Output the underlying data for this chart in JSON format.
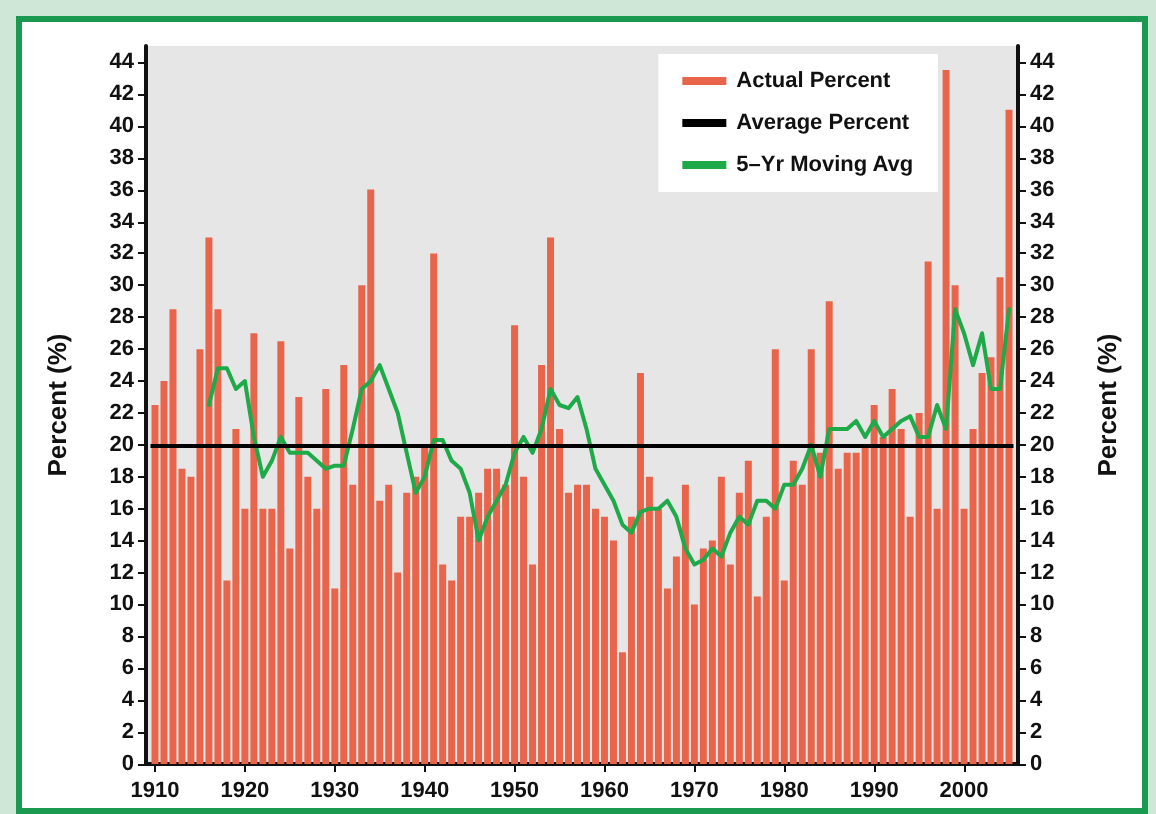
{
  "chart_data": {
    "type": "bar",
    "ylabel": "Percent (%)",
    "y2label": "Percent (%)",
    "x": [
      1910,
      1911,
      1912,
      1913,
      1914,
      1915,
      1916,
      1917,
      1918,
      1919,
      1920,
      1921,
      1922,
      1923,
      1924,
      1925,
      1926,
      1927,
      1928,
      1929,
      1930,
      1931,
      1932,
      1933,
      1934,
      1935,
      1936,
      1937,
      1938,
      1939,
      1940,
      1941,
      1942,
      1943,
      1944,
      1945,
      1946,
      1947,
      1948,
      1949,
      1950,
      1951,
      1952,
      1953,
      1954,
      1955,
      1956,
      1957,
      1958,
      1959,
      1960,
      1961,
      1962,
      1963,
      1964,
      1965,
      1966,
      1967,
      1968,
      1969,
      1970,
      1971,
      1972,
      1973,
      1974,
      1975,
      1976,
      1977,
      1978,
      1979,
      1980,
      1981,
      1982,
      1983,
      1984,
      1985,
      1986,
      1987,
      1988,
      1989,
      1990,
      1991,
      1992,
      1993,
      1994,
      1995,
      1996,
      1997,
      1998,
      1999,
      2000,
      2001,
      2002,
      2003,
      2004,
      2005
    ],
    "series": [
      {
        "name": "Actual Percent",
        "color": "#e8644a",
        "values": [
          22.5,
          24,
          28.5,
          18.5,
          18,
          26,
          33,
          28.5,
          11.5,
          21,
          16,
          27,
          16,
          16,
          26.5,
          13.5,
          23,
          18,
          16,
          23.5,
          11,
          25,
          17.5,
          30,
          36,
          16.5,
          17.5,
          12,
          17,
          18,
          20,
          32,
          12.5,
          11.5,
          15.5,
          15.5,
          17,
          18.5,
          18.5,
          17.5,
          27.5,
          18,
          12.5,
          25,
          33,
          21,
          17,
          17.5,
          17.5,
          16,
          15.5,
          14,
          7,
          15.5,
          24.5,
          18,
          16,
          11,
          13,
          17.5,
          10,
          13.5,
          14,
          18,
          12.5,
          17,
          19,
          10.5,
          15.5,
          26,
          11.5,
          19,
          17.5,
          26,
          19.5,
          29,
          18.5,
          19.5,
          19.5,
          20,
          22.5,
          20.5,
          23.5,
          21,
          15.5,
          22,
          31.5,
          16,
          43.5,
          30,
          16,
          21,
          24.5,
          25.5,
          30.5,
          41
        ]
      },
      {
        "name": "5–Yr Moving Avg",
        "type": "line",
        "color": "#1faa4a",
        "x": [
          1916,
          1917,
          1918,
          1919,
          1920,
          1921,
          1922,
          1923,
          1924,
          1925,
          1926,
          1927,
          1928,
          1929,
          1930,
          1931,
          1932,
          1933,
          1934,
          1935,
          1936,
          1937,
          1938,
          1939,
          1940,
          1941,
          1942,
          1943,
          1944,
          1945,
          1946,
          1947,
          1948,
          1949,
          1950,
          1951,
          1952,
          1953,
          1954,
          1955,
          1956,
          1957,
          1958,
          1959,
          1960,
          1961,
          1962,
          1963,
          1964,
          1965,
          1966,
          1967,
          1968,
          1969,
          1970,
          1971,
          1972,
          1973,
          1974,
          1975,
          1976,
          1977,
          1978,
          1979,
          1980,
          1981,
          1982,
          1983,
          1984,
          1985,
          1986,
          1987,
          1988,
          1989,
          1990,
          1991,
          1992,
          1993,
          1994,
          1995,
          1996,
          1997,
          1998,
          1999,
          2000,
          2001,
          2002,
          2003,
          2004,
          2005
        ],
        "values": [
          22.5,
          24.8,
          24.8,
          23.5,
          24,
          20.5,
          18,
          19,
          20.5,
          19.5,
          19.5,
          19.5,
          19,
          18.5,
          18.7,
          18.7,
          21,
          23.5,
          24,
          25,
          23.5,
          22,
          19.5,
          17,
          18,
          20.3,
          20.3,
          19,
          18.5,
          17,
          14,
          15.5,
          16.5,
          17.5,
          19.5,
          20.5,
          19.5,
          21,
          23.5,
          22.5,
          22.3,
          23,
          21,
          18.5,
          17.5,
          16.5,
          15,
          14.5,
          15.8,
          16,
          16,
          16.5,
          15.5,
          13.5,
          12.5,
          12.8,
          13.5,
          13,
          14.5,
          15.5,
          15,
          16.5,
          16.5,
          16,
          17.5,
          17.5,
          18.5,
          20,
          18,
          21,
          21,
          21,
          21.5,
          20.5,
          21.5,
          20.5,
          21,
          21.5,
          21.8,
          20.5,
          20.5,
          22.5,
          21,
          28.5,
          27,
          25,
          27,
          23.5,
          23.5,
          28.5
        ]
      }
    ],
    "ref_lines": [
      {
        "axis": "y",
        "value": 20,
        "label": "Average Percent",
        "color": "#000000"
      }
    ],
    "xlim": [
      1909,
      2006
    ],
    "xticks": [
      1910,
      1920,
      1930,
      1940,
      1950,
      1960,
      1970,
      1980,
      1990,
      2000
    ],
    "ylim": [
      0,
      45
    ],
    "yticks": [
      0,
      2,
      4,
      6,
      8,
      10,
      12,
      14,
      16,
      18,
      20,
      22,
      24,
      26,
      28,
      30,
      32,
      34,
      36,
      38,
      40,
      42,
      44
    ],
    "y2lim": [
      0,
      45
    ],
    "y2ticks": [
      0,
      2,
      4,
      6,
      8,
      10,
      12,
      14,
      16,
      18,
      20,
      22,
      24,
      26,
      28,
      30,
      32,
      34,
      36,
      38,
      40,
      42,
      44
    ],
    "grid": false,
    "legend": "top right",
    "marker": "none",
    "line_style": "solid"
  }
}
